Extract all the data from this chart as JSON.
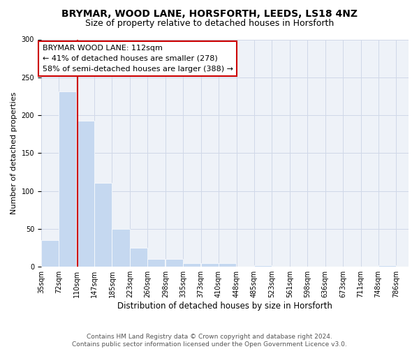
{
  "title1": "BRYMAR, WOOD LANE, HORSFORTH, LEEDS, LS18 4NZ",
  "title2": "Size of property relative to detached houses in Horsforth",
  "xlabel": "Distribution of detached houses by size in Horsforth",
  "ylabel": "Number of detached properties",
  "bin_labels": [
    "35sqm",
    "72sqm",
    "110sqm",
    "147sqm",
    "185sqm",
    "223sqm",
    "260sqm",
    "298sqm",
    "335sqm",
    "373sqm",
    "410sqm",
    "448sqm",
    "485sqm",
    "523sqm",
    "561sqm",
    "598sqm",
    "636sqm",
    "673sqm",
    "711sqm",
    "748sqm",
    "786sqm"
  ],
  "bin_edges": [
    35,
    72,
    110,
    147,
    185,
    223,
    260,
    298,
    335,
    373,
    410,
    448,
    485,
    523,
    561,
    598,
    636,
    673,
    711,
    748,
    786
  ],
  "counts": [
    35,
    231,
    193,
    111,
    50,
    25,
    10,
    10,
    5,
    5,
    5,
    0,
    2,
    0,
    0,
    0,
    0,
    0,
    0,
    2,
    0
  ],
  "bar_color": "#c5d8f0",
  "property_size": 112,
  "red_line_color": "#cc0000",
  "annotation_text": "BRYMAR WOOD LANE: 112sqm\n← 41% of detached houses are smaller (278)\n58% of semi-detached houses are larger (388) →",
  "annotation_box_color": "white",
  "annotation_box_edge": "#cc0000",
  "ylim": [
    0,
    300
  ],
  "yticks": [
    0,
    50,
    100,
    150,
    200,
    250,
    300
  ],
  "grid_color": "#d0d8e8",
  "background_color": "#eef2f8",
  "footer_text": "Contains HM Land Registry data © Crown copyright and database right 2024.\nContains public sector information licensed under the Open Government Licence v3.0.",
  "title1_fontsize": 10,
  "title2_fontsize": 9,
  "xlabel_fontsize": 8.5,
  "ylabel_fontsize": 8,
  "tick_fontsize": 7,
  "annotation_fontsize": 8,
  "footer_fontsize": 6.5
}
